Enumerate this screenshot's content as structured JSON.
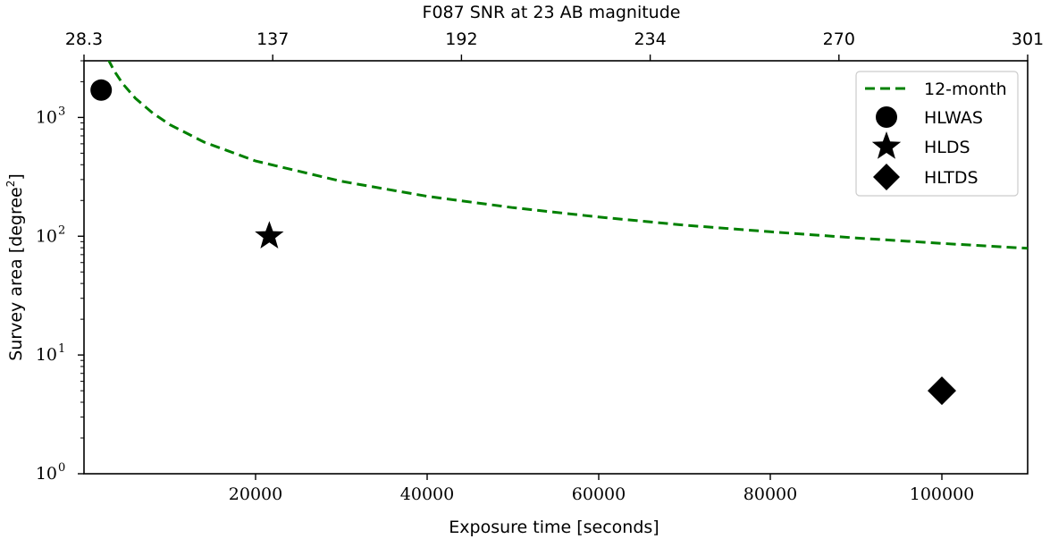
{
  "chart_data": {
    "type": "line",
    "title": "",
    "xlabel": "Exposure time [seconds]",
    "ylabel_text": "Survey area [degree",
    "ylabel_sup": "2",
    "ylabel_close": "]",
    "top_xlabel": "F087 SNR at 23 AB magnitude",
    "xlim": [
      0,
      110000
    ],
    "ylim": [
      1,
      3000
    ],
    "yscale": "log",
    "grid": false,
    "legend_position": "top-right",
    "x_ticks": [
      20000,
      40000,
      60000,
      80000,
      100000
    ],
    "x_tick_labels": [
      "20000",
      "40000",
      "60000",
      "80000",
      "100000"
    ],
    "y_ticks": [
      1,
      10,
      100,
      1000
    ],
    "y_tick_base": "10",
    "y_tick_exponents": [
      "0",
      "1",
      "2",
      "3"
    ],
    "top_ticks": [
      0,
      22000,
      44000,
      66000,
      88000,
      110000
    ],
    "top_tick_labels": [
      "28.3",
      "137",
      "192",
      "234",
      "270",
      "301"
    ],
    "series": [
      {
        "name": "12-month",
        "style": "dashed-line",
        "color": "#008000",
        "x": [
          2800,
          3500,
          4500,
          6000,
          8000,
          10000,
          14000,
          20000,
          30000,
          40000,
          50000,
          60000,
          70000,
          80000,
          90000,
          100000,
          110000
        ],
        "y": [
          3100,
          2480,
          1930,
          1450,
          1090,
          870,
          620,
          430,
          290,
          217,
          174,
          145,
          124,
          109,
          96.7,
          87.0,
          79.1
        ]
      },
      {
        "name": "HLWAS",
        "marker": "circle",
        "color": "#000000",
        "x": [
          2000
        ],
        "y": [
          1700
        ]
      },
      {
        "name": "HLDS",
        "marker": "star",
        "color": "#000000",
        "x": [
          21600
        ],
        "y": [
          100
        ]
      },
      {
        "name": "HLTDS",
        "marker": "diamond",
        "color": "#000000",
        "x": [
          100000
        ],
        "y": [
          5
        ]
      }
    ]
  }
}
